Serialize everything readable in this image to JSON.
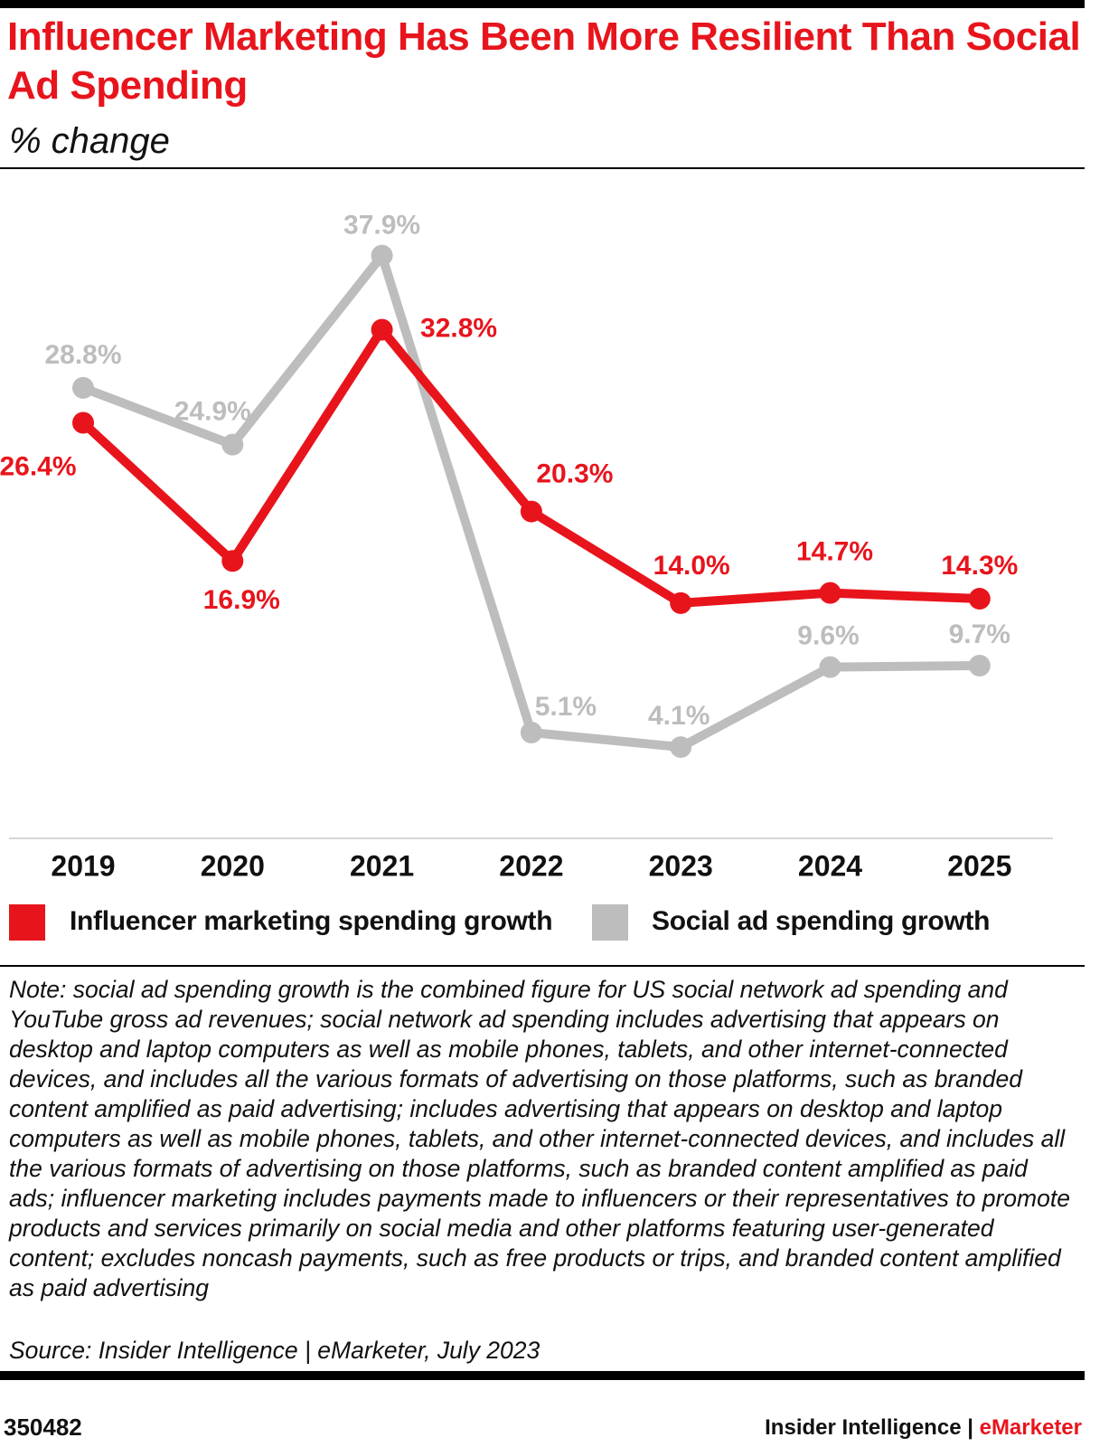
{
  "header": {
    "title": "Influencer Marketing Has Been More Resilient Than Social Ad Spending",
    "subtitle": "% change"
  },
  "chart_data": {
    "type": "line",
    "categories": [
      "2019",
      "2020",
      "2021",
      "2022",
      "2023",
      "2024",
      "2025"
    ],
    "series": [
      {
        "name": "Influencer marketing spending growth",
        "color": "#e8141c",
        "values": [
          26.4,
          16.9,
          32.8,
          20.3,
          14.0,
          14.7,
          14.3
        ],
        "labels": [
          "26.4%",
          "16.9%",
          "32.8%",
          "20.3%",
          "14.0%",
          "14.7%",
          "14.3%"
        ]
      },
      {
        "name": "Social ad spending growth",
        "color": "#bdbdbd",
        "values": [
          28.8,
          24.9,
          37.9,
          5.1,
          4.1,
          9.6,
          9.7
        ],
        "labels": [
          "28.8%",
          "24.9%",
          "37.9%",
          "5.1%",
          "4.1%",
          "9.6%",
          "9.7%"
        ]
      }
    ],
    "ylim": [
      0,
      40
    ],
    "grid": false,
    "legend_position": "bottom"
  },
  "note": "Note: social ad spending growth is the combined figure for US social network ad spending and YouTube gross ad revenues; social network ad spending includes advertising that appears on desktop and laptop computers as well as mobile phones, tablets, and other internet-connected devices, and includes all the various formats of advertising on those platforms, such as branded content amplified as paid advertising; includes advertising that appears on desktop and laptop computers as well as mobile phones, tablets, and other internet-connected devices, and includes all the various formats of advertising on those platforms, such as branded content amplified as paid ads; influencer marketing includes payments made to influencers or their representatives to promote products and services primarily on social media and other platforms featuring user-generated content; excludes noncash payments, such as free products or trips, and branded content amplified as paid advertising",
  "source": "Source: Insider Intelligence | eMarketer, July 2023",
  "footer": {
    "chart_id": "350482",
    "brand_left": "Insider Intelligence | ",
    "brand_right": "eMarketer"
  }
}
